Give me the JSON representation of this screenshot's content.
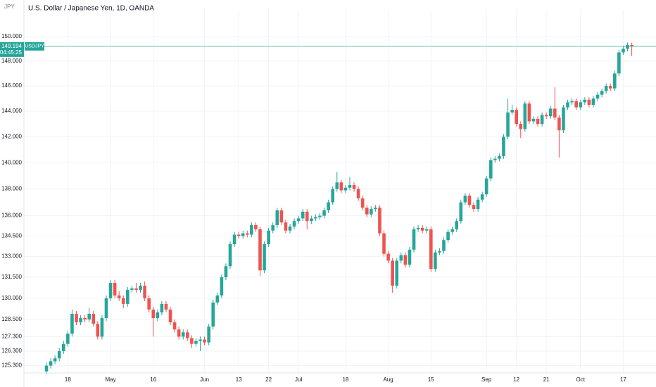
{
  "chart_data": {
    "type": "candlestick",
    "title": "U.S. Dollar / Japanese Yen, 1D, OANDA",
    "currency": "JPY",
    "symbol": "USDJPY",
    "last_price": 149.194,
    "countdown": "04:45:25",
    "log_scale": true,
    "grid": true,
    "up_color": "#26a69a",
    "down_color": "#ef5350",
    "last_price_color": "#26a69a",
    "ylim": [
      124.8,
      152.2
    ],
    "yticks": [
      {
        "value": 150,
        "label": "150.000"
      },
      {
        "value": 148,
        "label": "148.000"
      },
      {
        "value": 146,
        "label": "146.000"
      },
      {
        "value": 144,
        "label": "144.000"
      },
      {
        "value": 142,
        "label": "142.000"
      },
      {
        "value": 140,
        "label": "140.000"
      },
      {
        "value": 138,
        "label": "138.000"
      },
      {
        "value": 136,
        "label": "136.000"
      },
      {
        "value": 134.5,
        "label": "134.500"
      },
      {
        "value": 133,
        "label": "133.000"
      },
      {
        "value": 131.5,
        "label": "131.500"
      },
      {
        "value": 130,
        "label": "130.000"
      },
      {
        "value": 128.5,
        "label": "128.500"
      },
      {
        "value": 127.3,
        "label": "127.300"
      },
      {
        "value": 126.3,
        "label": "126.300"
      },
      {
        "value": 125.3,
        "label": "125.300"
      }
    ],
    "categories": [
      null,
      null,
      null,
      null,
      null,
      "18",
      null,
      null,
      null,
      null,
      null,
      null,
      null,
      null,
      null,
      "May",
      null,
      null,
      null,
      null,
      null,
      null,
      null,
      null,
      null,
      "16",
      null,
      null,
      null,
      null,
      null,
      null,
      null,
      null,
      null,
      null,
      null,
      "Jun",
      null,
      null,
      null,
      null,
      null,
      null,
      null,
      "13",
      null,
      null,
      null,
      null,
      null,
      null,
      "22",
      null,
      null,
      null,
      null,
      null,
      null,
      "Jul",
      null,
      null,
      null,
      null,
      null,
      null,
      null,
      null,
      null,
      null,
      "18",
      null,
      null,
      null,
      null,
      null,
      null,
      null,
      null,
      null,
      "Aug",
      null,
      null,
      null,
      null,
      null,
      null,
      null,
      null,
      null,
      "15",
      null,
      null,
      null,
      null,
      null,
      null,
      null,
      null,
      null,
      null,
      null,
      null,
      "Sep",
      null,
      null,
      null,
      null,
      null,
      null,
      "12",
      null,
      null,
      null,
      null,
      null,
      null,
      "21",
      null,
      null,
      null,
      null,
      null,
      null,
      null,
      "Oct",
      null,
      null,
      null,
      null,
      null,
      null,
      null,
      null,
      null,
      "17",
      null,
      null
    ],
    "open": [
      124.9,
      125.3,
      125.6,
      125.8,
      126.3,
      126.8,
      127.5,
      128.9,
      128.3,
      128.6,
      128.5,
      128.9,
      128.2,
      127.3,
      128.6,
      130.0,
      131.1,
      130.2,
      130.0,
      129.6,
      130.6,
      130.7,
      130.6,
      130.9,
      130.0,
      129.2,
      128.6,
      129.0,
      129.6,
      129.2,
      128.3,
      127.8,
      127.3,
      127.6,
      127.2,
      126.8,
      127.0,
      127.1,
      126.9,
      128.0,
      129.7,
      130.2,
      131.5,
      132.3,
      133.9,
      134.6,
      134.5,
      134.7,
      134.6,
      135.3,
      135.0,
      132.0,
      133.9,
      134.9,
      135.3,
      136.4,
      135.5,
      134.9,
      135.2,
      135.6,
      135.8,
      136.3,
      135.6,
      135.8,
      135.9,
      136.0,
      136.4,
      137.0,
      138.0,
      138.5,
      137.9,
      138.1,
      138.3,
      138.0,
      137.3,
      136.6,
      136.1,
      136.5,
      136.6,
      134.7,
      133.2,
      132.7,
      130.9,
      132.7,
      133.1,
      132.4,
      133.5,
      135.0,
      135.1,
      134.9,
      135.0,
      132.1,
      133.3,
      133.4,
      134.2,
      134.8,
      135.0,
      135.6,
      137.0,
      137.5,
      136.8,
      136.5,
      137.2,
      137.6,
      138.8,
      140.2,
      140.3,
      140.5,
      142.0,
      143.9,
      144.1,
      143.0,
      142.6,
      144.6,
      143.2,
      143.4,
      143.0,
      143.7,
      143.6,
      144.2,
      143.5,
      142.5,
      144.3,
      144.7,
      144.8,
      144.3,
      144.7,
      144.9,
      144.5,
      145.0,
      145.3,
      145.6,
      146.0,
      145.8,
      147.0,
      148.7,
      149.0,
      149.3
    ],
    "high": [
      125.5,
      125.8,
      126.0,
      126.5,
      127.0,
      127.7,
      129.2,
      129.1,
      128.8,
      128.8,
      129.3,
      129.1,
      128.4,
      128.8,
      130.2,
      131.3,
      131.3,
      130.5,
      130.2,
      130.8,
      130.9,
      131.1,
      131.1,
      131.2,
      130.2,
      129.4,
      129.2,
      129.8,
      129.8,
      129.4,
      128.5,
      128.0,
      127.8,
      127.8,
      127.4,
      127.2,
      127.3,
      127.3,
      128.2,
      129.9,
      130.4,
      131.7,
      132.5,
      134.1,
      134.8,
      134.8,
      134.9,
      134.9,
      135.5,
      135.5,
      135.2,
      134.1,
      135.1,
      135.5,
      136.6,
      136.6,
      135.7,
      135.4,
      135.8,
      136.0,
      136.5,
      136.5,
      136.0,
      136.1,
      136.2,
      136.6,
      137.2,
      138.2,
      139.3,
      138.7,
      138.3,
      138.9,
      138.5,
      138.2,
      137.5,
      136.8,
      136.7,
      136.8,
      136.8,
      134.9,
      133.4,
      132.9,
      132.9,
      133.3,
      133.3,
      133.7,
      135.2,
      135.3,
      135.3,
      135.2,
      135.2,
      133.5,
      133.6,
      134.4,
      135.0,
      135.2,
      135.8,
      137.2,
      137.7,
      137.7,
      137.0,
      137.4,
      137.8,
      139.0,
      140.4,
      140.5,
      140.7,
      142.2,
      145.0,
      144.5,
      144.3,
      143.2,
      144.8,
      144.8,
      143.6,
      143.6,
      143.9,
      143.9,
      144.4,
      145.9,
      143.7,
      144.5,
      144.9,
      145.0,
      145.0,
      144.9,
      145.1,
      145.1,
      145.2,
      145.5,
      145.8,
      146.2,
      146.2,
      147.2,
      148.9,
      149.2,
      149.5,
      149.5
    ],
    "low": [
      124.7,
      125.1,
      125.4,
      125.6,
      126.1,
      126.6,
      127.3,
      128.1,
      128.1,
      128.3,
      128.3,
      128.0,
      127.1,
      127.1,
      128.4,
      129.8,
      130.0,
      129.8,
      129.3,
      129.4,
      130.4,
      130.4,
      130.4,
      129.8,
      129.0,
      127.3,
      128.4,
      128.8,
      129.0,
      128.1,
      127.6,
      127.1,
      127.1,
      127.0,
      126.5,
      126.6,
      126.3,
      126.7,
      126.7,
      127.8,
      129.5,
      130.0,
      131.3,
      132.1,
      133.7,
      134.3,
      134.3,
      134.4,
      134.4,
      134.8,
      131.6,
      131.8,
      133.7,
      134.7,
      135.1,
      135.3,
      134.7,
      134.7,
      135.0,
      135.4,
      135.6,
      135.0,
      135.4,
      135.6,
      135.7,
      135.8,
      136.2,
      136.8,
      137.8,
      137.7,
      137.7,
      137.9,
      137.8,
      137.1,
      136.4,
      135.9,
      135.9,
      136.3,
      134.5,
      133.0,
      132.5,
      130.4,
      130.7,
      132.5,
      132.2,
      132.2,
      133.3,
      134.8,
      134.7,
      134.7,
      131.9,
      131.9,
      133.1,
      133.2,
      134.0,
      134.6,
      134.8,
      135.4,
      136.8,
      136.6,
      136.3,
      136.3,
      137.0,
      137.4,
      138.6,
      140.0,
      140.1,
      140.3,
      141.8,
      143.7,
      142.8,
      141.9,
      142.4,
      143.0,
      143.0,
      142.8,
      142.8,
      143.4,
      143.4,
      143.3,
      140.4,
      142.3,
      144.1,
      144.5,
      144.1,
      144.1,
      144.5,
      144.3,
      144.3,
      144.8,
      145.1,
      145.4,
      145.6,
      145.6,
      146.8,
      148.5,
      148.8,
      148.4
    ],
    "close": [
      125.3,
      125.6,
      125.8,
      126.3,
      126.8,
      127.5,
      128.9,
      128.3,
      128.6,
      128.5,
      128.9,
      128.2,
      127.3,
      128.6,
      130.0,
      131.1,
      130.2,
      130.0,
      129.6,
      130.6,
      130.7,
      130.6,
      130.9,
      130.0,
      129.2,
      128.6,
      129.0,
      129.6,
      129.2,
      128.3,
      127.8,
      127.3,
      127.6,
      127.2,
      126.8,
      127.0,
      127.1,
      126.9,
      128.0,
      129.7,
      130.2,
      131.5,
      132.3,
      133.9,
      134.6,
      134.5,
      134.7,
      134.6,
      135.3,
      135.0,
      132.0,
      133.9,
      134.9,
      135.3,
      136.4,
      135.5,
      134.9,
      135.2,
      135.6,
      135.8,
      136.3,
      135.6,
      135.8,
      135.9,
      136.0,
      136.4,
      137.0,
      138.0,
      138.5,
      137.9,
      138.1,
      138.3,
      138.0,
      137.3,
      136.6,
      136.1,
      136.5,
      136.6,
      134.7,
      133.2,
      132.7,
      130.9,
      132.7,
      133.1,
      132.4,
      133.5,
      135.0,
      135.1,
      134.9,
      135.0,
      132.1,
      133.3,
      133.4,
      134.2,
      134.8,
      135.0,
      135.6,
      137.0,
      137.5,
      136.8,
      136.5,
      137.2,
      137.6,
      138.8,
      140.2,
      140.3,
      140.5,
      142.0,
      143.9,
      144.1,
      143.0,
      142.6,
      144.6,
      143.2,
      143.4,
      143.0,
      143.7,
      143.6,
      144.2,
      143.5,
      142.5,
      144.3,
      144.7,
      144.8,
      144.3,
      144.7,
      144.9,
      144.5,
      145.0,
      145.3,
      145.6,
      146.0,
      145.8,
      147.0,
      148.7,
      149.0,
      149.3,
      149.19
    ]
  }
}
